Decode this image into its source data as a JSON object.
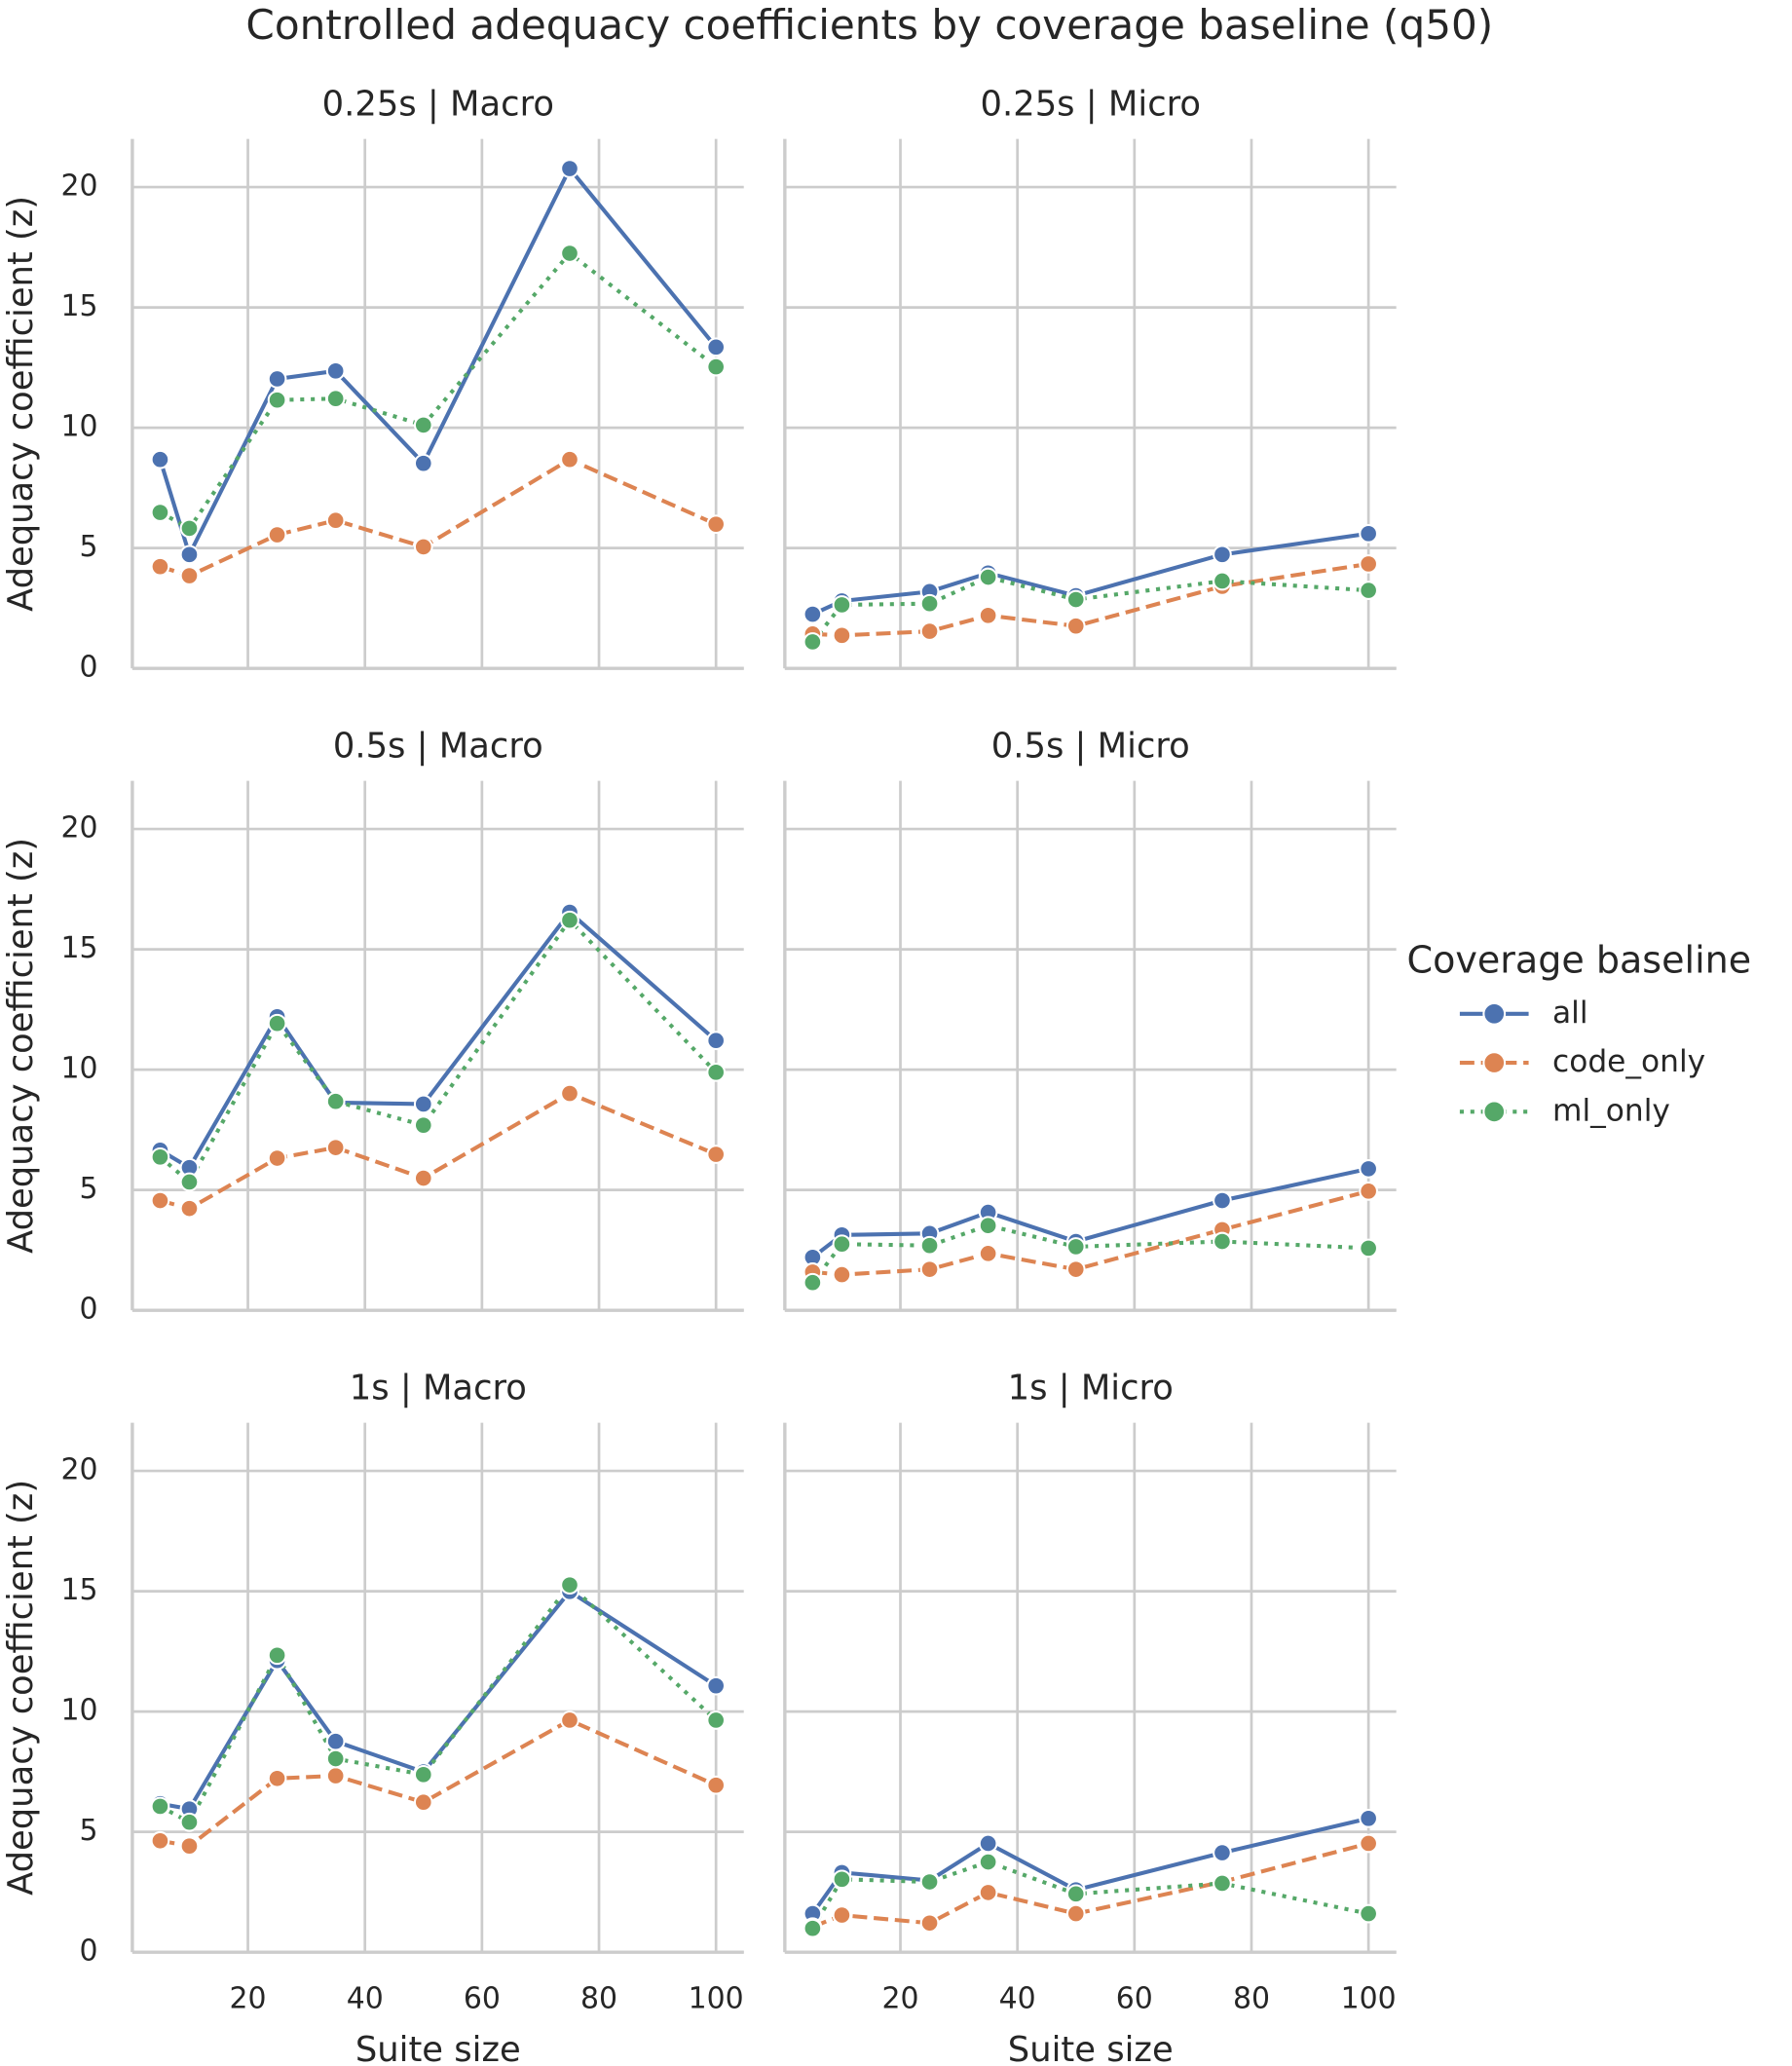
{
  "title": "Controlled adequacy coefficients by coverage baseline (q50)",
  "legend_title": "Coverage baseline",
  "legend": "right",
  "chart_data": [
    {
      "type": "line",
      "title": "0.25s | Macro",
      "ylabel": "Adequacy coefficient (z)",
      "x": [
        5,
        10,
        25,
        35,
        50,
        75,
        100
      ],
      "xlim": [
        0.25,
        104.75
      ],
      "ylim": [
        0,
        22
      ],
      "xticks": [
        20,
        40,
        60,
        80,
        100
      ],
      "yticks": [
        0,
        5,
        10,
        15,
        20
      ],
      "grid": true,
      "series": [
        {
          "name": "all",
          "color": "#4c72b0",
          "dash": "solid",
          "values": [
            8.68,
            4.73,
            12.03,
            12.36,
            8.52,
            20.77,
            13.35
          ]
        },
        {
          "name": "code_only",
          "color": "#dd8452",
          "dash": "dashed",
          "values": [
            4.23,
            3.85,
            5.55,
            6.15,
            5.05,
            8.68,
            5.99
          ]
        },
        {
          "name": "ml_only",
          "color": "#55a868",
          "dash": "dotted",
          "values": [
            6.48,
            5.82,
            11.15,
            11.21,
            10.11,
            17.25,
            12.53
          ]
        }
      ]
    },
    {
      "type": "line",
      "title": "0.25s | Micro",
      "x": [
        5,
        10,
        25,
        35,
        50,
        75,
        100
      ],
      "xlim": [
        0.25,
        104.75
      ],
      "ylim": [
        0,
        22
      ],
      "xticks": [
        20,
        40,
        60,
        80,
        100
      ],
      "yticks": [
        0,
        5,
        10,
        15,
        20
      ],
      "grid": true,
      "series": [
        {
          "name": "all",
          "color": "#4c72b0",
          "dash": "solid",
          "values": [
            2.25,
            2.8,
            3.19,
            3.96,
            3.02,
            4.73,
            5.6
          ]
        },
        {
          "name": "code_only",
          "color": "#dd8452",
          "dash": "dashed",
          "values": [
            1.43,
            1.37,
            1.54,
            2.2,
            1.76,
            3.41,
            4.34
          ]
        },
        {
          "name": "ml_only",
          "color": "#55a868",
          "dash": "dotted",
          "values": [
            1.1,
            2.64,
            2.69,
            3.79,
            2.86,
            3.63,
            3.24
          ]
        }
      ]
    },
    {
      "type": "line",
      "title": "0.5s | Macro",
      "ylabel": "Adequacy coefficient (z)",
      "x": [
        5,
        10,
        25,
        35,
        50,
        75,
        100
      ],
      "xlim": [
        0.25,
        104.75
      ],
      "ylim": [
        0,
        22
      ],
      "xticks": [
        20,
        40,
        60,
        80,
        100
      ],
      "yticks": [
        0,
        5,
        10,
        15,
        20
      ],
      "grid": true,
      "series": [
        {
          "name": "all",
          "color": "#4c72b0",
          "dash": "solid",
          "values": [
            6.65,
            5.93,
            12.2,
            8.63,
            8.57,
            16.54,
            11.21
          ]
        },
        {
          "name": "code_only",
          "color": "#dd8452",
          "dash": "dashed",
          "values": [
            4.56,
            4.23,
            6.32,
            6.76,
            5.49,
            9.01,
            6.48
          ]
        },
        {
          "name": "ml_only",
          "color": "#55a868",
          "dash": "dotted",
          "values": [
            6.37,
            5.33,
            11.92,
            8.68,
            7.69,
            16.21,
            9.89
          ]
        }
      ]
    },
    {
      "type": "line",
      "title": "0.5s | Micro",
      "x": [
        5,
        10,
        25,
        35,
        50,
        75,
        100
      ],
      "xlim": [
        0.25,
        104.75
      ],
      "ylim": [
        0,
        22
      ],
      "xticks": [
        20,
        40,
        60,
        80,
        100
      ],
      "yticks": [
        0,
        5,
        10,
        15,
        20
      ],
      "grid": true,
      "series": [
        {
          "name": "all",
          "color": "#4c72b0",
          "dash": "solid",
          "values": [
            2.2,
            3.13,
            3.19,
            4.07,
            2.86,
            4.56,
            5.88
          ]
        },
        {
          "name": "code_only",
          "color": "#dd8452",
          "dash": "dashed",
          "values": [
            1.59,
            1.48,
            1.7,
            2.36,
            1.7,
            3.35,
            4.95
          ]
        },
        {
          "name": "ml_only",
          "color": "#55a868",
          "dash": "dotted",
          "values": [
            1.15,
            2.75,
            2.69,
            3.52,
            2.64,
            2.86,
            2.58
          ]
        }
      ]
    },
    {
      "type": "line",
      "title": "1s | Macro",
      "ylabel": "Adequacy coefficient (z)",
      "xlabel": "Suite size",
      "x": [
        5,
        10,
        25,
        35,
        50,
        75,
        100
      ],
      "xlim": [
        0.25,
        104.75
      ],
      "ylim": [
        0,
        22
      ],
      "xticks": [
        20,
        40,
        60,
        80,
        100
      ],
      "yticks": [
        0,
        5,
        10,
        15,
        20
      ],
      "grid": true,
      "series": [
        {
          "name": "all",
          "color": "#4c72b0",
          "dash": "solid",
          "values": [
            6.17,
            5.95,
            12.12,
            8.76,
            7.49,
            14.99,
            11.07
          ]
        },
        {
          "name": "code_only",
          "color": "#dd8452",
          "dash": "dashed",
          "values": [
            4.63,
            4.41,
            7.22,
            7.33,
            6.23,
            9.64,
            6.94
          ]
        },
        {
          "name": "ml_only",
          "color": "#55a868",
          "dash": "dotted",
          "values": [
            6.06,
            5.4,
            12.34,
            8.04,
            7.38,
            15.26,
            9.64
          ]
        }
      ]
    },
    {
      "type": "line",
      "title": "1s | Micro",
      "xlabel": "Suite size",
      "x": [
        5,
        10,
        25,
        35,
        50,
        75,
        100
      ],
      "xlim": [
        0.25,
        104.75
      ],
      "ylim": [
        0,
        22
      ],
      "xticks": [
        20,
        40,
        60,
        80,
        100
      ],
      "yticks": [
        0,
        5,
        10,
        15,
        20
      ],
      "grid": true,
      "series": [
        {
          "name": "all",
          "color": "#4c72b0",
          "dash": "solid",
          "values": [
            1.6,
            3.31,
            2.98,
            4.52,
            2.59,
            4.13,
            5.56
          ]
        },
        {
          "name": "code_only",
          "color": "#dd8452",
          "dash": "dashed",
          "values": [
            1.05,
            1.54,
            1.21,
            2.48,
            1.6,
            2.92,
            4.52
          ]
        },
        {
          "name": "ml_only",
          "color": "#55a868",
          "dash": "dotted",
          "values": [
            0.99,
            3.03,
            2.92,
            3.75,
            2.42,
            2.86,
            1.6
          ]
        }
      ]
    }
  ]
}
